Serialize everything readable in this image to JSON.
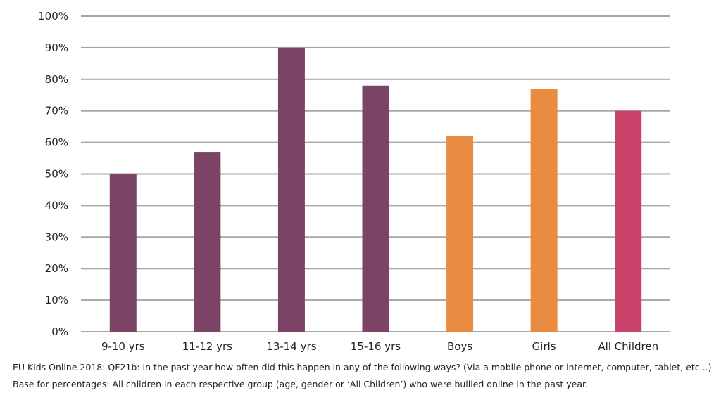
{
  "chart_data": {
    "type": "bar",
    "categories": [
      "9-10 yrs",
      "11-12 yrs",
      "13-14 yrs",
      "15-16 yrs",
      "Boys",
      "Girls",
      "All Children"
    ],
    "values": [
      50,
      57,
      90,
      78,
      62,
      77,
      70
    ],
    "bar_colors": [
      "#7b4466",
      "#7b4466",
      "#7b4466",
      "#7b4466",
      "#e98c42",
      "#e98c42",
      "#c9436b"
    ],
    "ylim": [
      0,
      100
    ],
    "yticks": [
      "0%",
      "10%",
      "20%",
      "30%",
      "40%",
      "50%",
      "60%",
      "70%",
      "80%",
      "90%",
      "100%"
    ],
    "grid": true,
    "xlabel": "",
    "ylabel": ""
  },
  "footnotes": {
    "line1": "EU Kids Online 2018: QF21b: In the past year how often did this happen in any of the following ways? (Via a mobile phone or internet, computer, tablet, etc...)",
    "line2": "Base for percentages: All children in each respective group (age, gender or ‘All Children’) who were bullied online in the past year."
  }
}
